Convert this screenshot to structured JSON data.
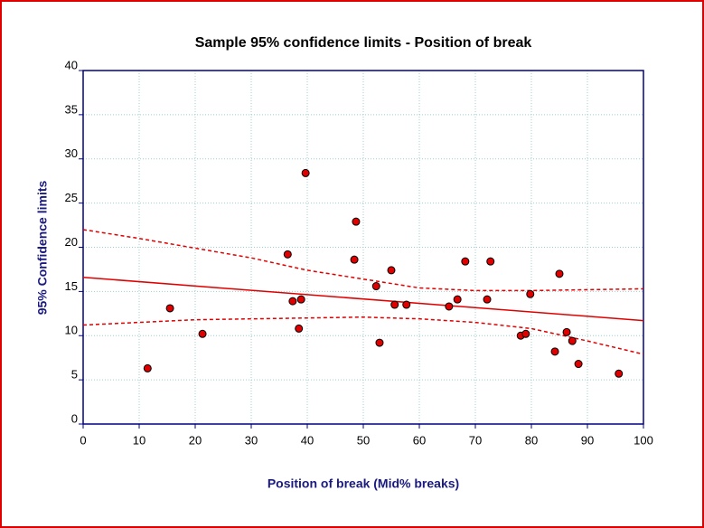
{
  "chart_data": {
    "type": "scatter",
    "title": "Sample 95% confidence limits - Position of break",
    "x_label": "Position of break (Mid% breaks)",
    "y_label": "95% Confidence limits",
    "xlim": [
      0,
      100
    ],
    "ylim": [
      0,
      40
    ],
    "xticks": [
      0,
      10,
      20,
      30,
      40,
      50,
      60,
      70,
      80,
      90,
      100
    ],
    "yticks": [
      0,
      5,
      10,
      15,
      20,
      25,
      30,
      35,
      40
    ],
    "grid": true,
    "points": {
      "color": "#e00000",
      "x": [
        11.5,
        15.5,
        21.3,
        36.5,
        37.4,
        38.9,
        38.5,
        39.7,
        48.7,
        48.4,
        52.3,
        52.9,
        55.0,
        55.6,
        57.7,
        65.3,
        66.8,
        68.2,
        72.1,
        72.7,
        78.1,
        79.0,
        79.8,
        84.2,
        85.0,
        86.3,
        87.3,
        88.4,
        95.6
      ],
      "values": [
        6.3,
        13.1,
        10.2,
        19.2,
        13.9,
        14.1,
        10.8,
        28.4,
        22.9,
        18.6,
        15.6,
        9.2,
        17.4,
        13.5,
        13.5,
        13.3,
        14.1,
        18.4,
        14.1,
        18.4,
        10.0,
        10.2,
        14.7,
        8.2,
        17.0,
        10.4,
        9.4,
        6.8,
        5.7
      ]
    },
    "fit_line": {
      "color": "#e00000",
      "x": [
        0,
        100
      ],
      "values": [
        16.6,
        11.7
      ]
    },
    "upper_limit": {
      "color": "#e00000",
      "x": [
        0,
        10,
        20,
        30,
        40,
        50,
        60,
        70,
        80,
        90,
        100
      ],
      "values": [
        22.0,
        21.0,
        19.9,
        18.8,
        17.4,
        16.4,
        15.4,
        15.1,
        15.1,
        15.2,
        15.3
      ]
    },
    "lower_limit": {
      "color": "#e00000",
      "x": [
        0,
        10,
        20,
        30,
        40,
        50,
        60,
        70,
        80,
        90,
        100
      ],
      "values": [
        11.2,
        11.5,
        11.8,
        11.9,
        12.0,
        12.1,
        11.9,
        11.5,
        10.8,
        9.4,
        7.9
      ]
    }
  }
}
